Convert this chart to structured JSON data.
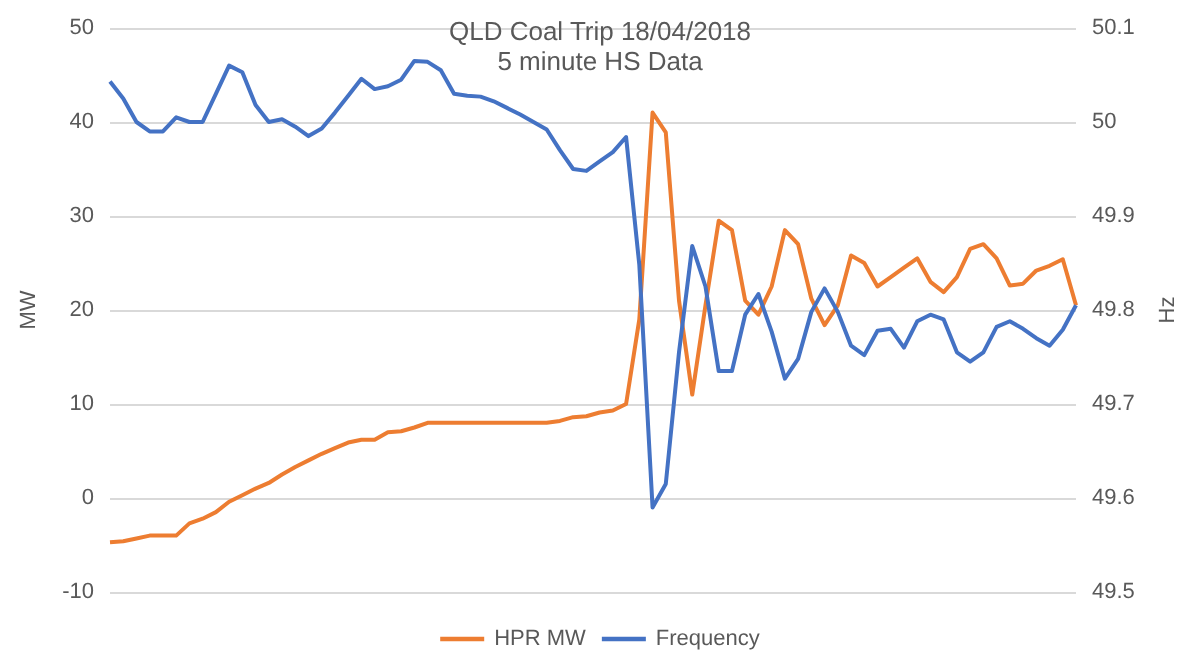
{
  "chart_data": {
    "type": "line",
    "title": "QLD Coal Trip 18/04/2018",
    "subtitle": "5 minute HS Data",
    "ylabel": "MW",
    "y2label": "Hz",
    "categories": [
      null,
      null,
      null,
      null,
      null,
      null,
      null,
      null,
      null,
      null,
      null,
      null,
      null,
      null,
      null,
      null,
      null,
      null,
      null,
      null,
      null,
      null,
      null,
      null,
      null,
      null,
      null,
      null,
      null,
      null,
      null,
      null,
      null,
      null,
      null,
      null,
      null,
      null,
      null,
      null,
      null,
      null,
      null,
      null,
      null,
      null,
      null,
      null,
      null,
      null,
      null,
      null,
      null,
      null,
      null,
      null,
      null,
      null,
      null,
      null,
      null,
      null,
      null,
      null,
      null,
      null,
      null,
      null,
      null,
      null,
      null,
      null,
      null,
      null
    ],
    "series": [
      {
        "name": "HPR MW",
        "color": "#ed7d31",
        "values": [
          -4.7,
          -4.6,
          -4.3,
          -4,
          -4,
          -4,
          -2.7,
          -2.2,
          -1.5,
          -0.4,
          0.3,
          1,
          1.6,
          2.5,
          3.3,
          4,
          4.7,
          5.3,
          5.9,
          6.2,
          6.2,
          7,
          7.1,
          7.5,
          8,
          8,
          8,
          8,
          8,
          8,
          8,
          8,
          8,
          8,
          8.2,
          8.6,
          8.7,
          9.1,
          9.3,
          10,
          19,
          41,
          38.9,
          21,
          11,
          20.5,
          29.5,
          28.5,
          21,
          19.5,
          22.5,
          28.5,
          27,
          21.2,
          18.4,
          20.5,
          25.8,
          25,
          22.5,
          23.5,
          24.5,
          25.5,
          23,
          21.9,
          23.5,
          26.5,
          27,
          25.5,
          22.6,
          22.8,
          24.2,
          24.7,
          25.4,
          20.5
        ]
      },
      {
        "name": "Frequency",
        "color": "#4472c4",
        "axis": "y2",
        "values": [
          50.043,
          50.025,
          50.0,
          49.99,
          49.99,
          50.005,
          50,
          50,
          50.03,
          50.06,
          50.053,
          50.018,
          50,
          50.003,
          49.995,
          49.985,
          49.993,
          50.01,
          50.028,
          50.046,
          50.035,
          50.038,
          50.045,
          50.065,
          50.064,
          50.055,
          50.03,
          50.028,
          50.027,
          50.022,
          50.015,
          50.008,
          50,
          49.992,
          49.97,
          49.95,
          49.948,
          49.958,
          49.968,
          49.984,
          49.848,
          49.59,
          49.615,
          49.755,
          49.868,
          49.825,
          49.735,
          49.735,
          49.795,
          49.817,
          49.777,
          49.727,
          49.748,
          49.798,
          49.823,
          49.798,
          49.762,
          49.752,
          49.778,
          49.78,
          49.76,
          49.788,
          49.795,
          49.79,
          49.755,
          49.745,
          49.755,
          49.782,
          49.788,
          49.78,
          49.77,
          49.762,
          49.779,
          49.805
        ]
      }
    ],
    "ylim": [
      -10,
      50
    ],
    "yticks": [
      -10,
      0,
      10,
      20,
      30,
      40,
      50
    ],
    "y2lim": [
      49.5,
      50.1
    ],
    "y2ticks": [
      49.5,
      49.6,
      49.7,
      49.8,
      49.9,
      50,
      50.1
    ],
    "grid": "y",
    "legend": "bottom",
    "tick_labels": "y"
  }
}
